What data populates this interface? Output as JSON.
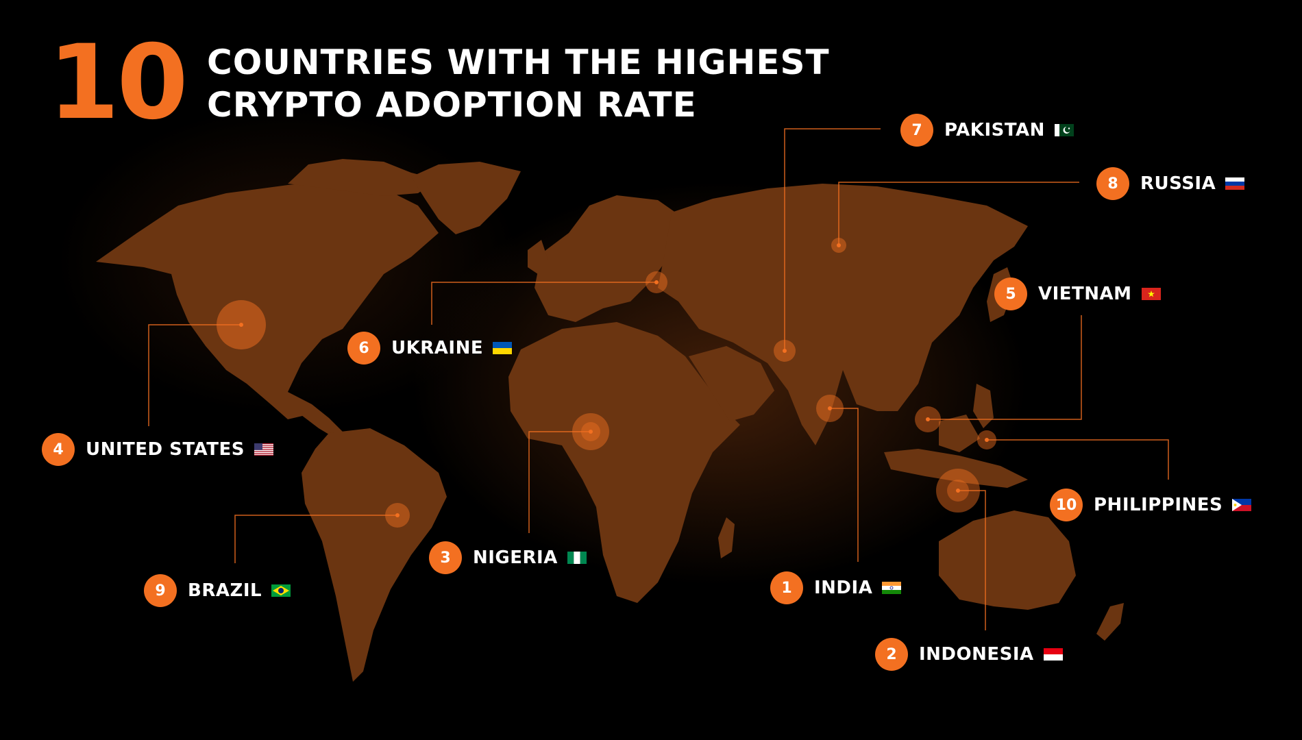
{
  "header": {
    "big_number": "10",
    "title_line1": "COUNTRIES WITH THE HIGHEST",
    "title_line2": "CRYPTO ADOPTION RATE"
  },
  "colors": {
    "accent": "#f37021",
    "land": "#6b3511",
    "background": "#000000",
    "text": "#ffffff"
  },
  "countries": [
    {
      "rank": "1",
      "name": "INDIA",
      "flag": "india-flag-icon"
    },
    {
      "rank": "2",
      "name": "INDONESIA",
      "flag": "indonesia-flag-icon"
    },
    {
      "rank": "3",
      "name": "NIGERIA",
      "flag": "nigeria-flag-icon"
    },
    {
      "rank": "4",
      "name": "UNITED STATES",
      "flag": "united-states-flag-icon"
    },
    {
      "rank": "5",
      "name": "VIETNAM",
      "flag": "vietnam-flag-icon"
    },
    {
      "rank": "6",
      "name": "UKRAINE",
      "flag": "ukraine-flag-icon"
    },
    {
      "rank": "7",
      "name": "PAKISTAN",
      "flag": "pakistan-flag-icon"
    },
    {
      "rank": "8",
      "name": "RUSSIA",
      "flag": "russia-flag-icon"
    },
    {
      "rank": "9",
      "name": "BRAZIL",
      "flag": "brazil-flag-icon"
    },
    {
      "rank": "10",
      "name": "PHILIPPINES",
      "flag": "philippines-flag-icon"
    }
  ]
}
